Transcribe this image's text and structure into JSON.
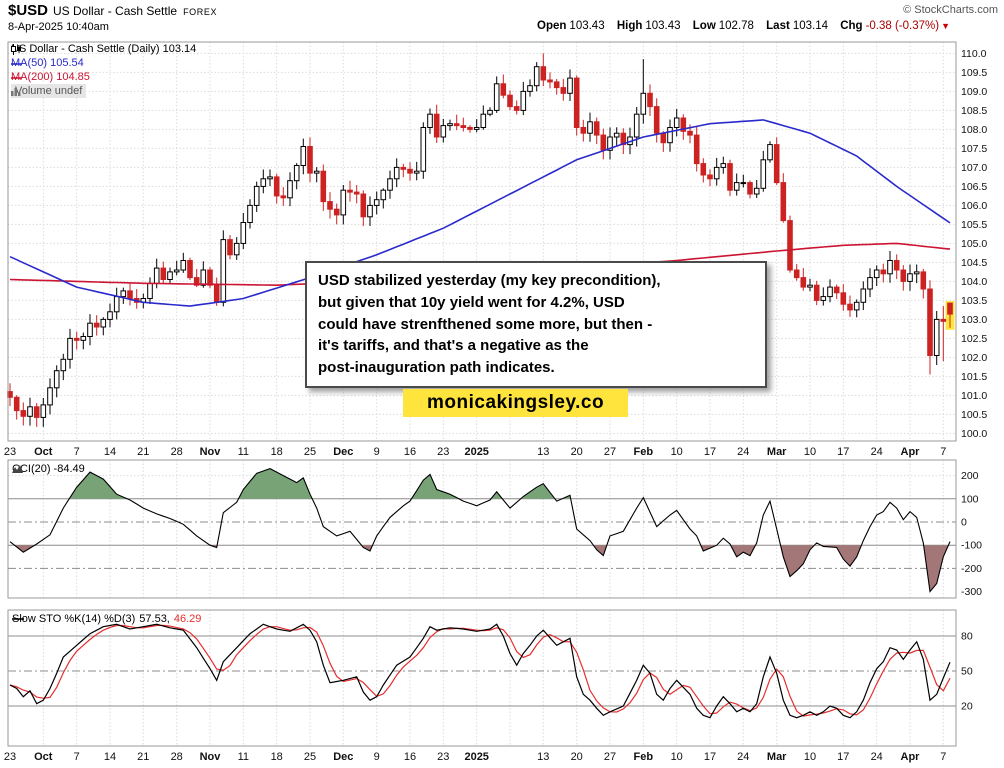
{
  "header": {
    "symbol": "$USD",
    "name": "US Dollar - Cash Settle",
    "exchange": "FOREX",
    "datetime": "8-Apr-2025 10:40am",
    "copyright": "© StockCharts.com",
    "quote": {
      "open_label": "Open",
      "open": "103.43",
      "high_label": "High",
      "high": "103.43",
      "low_label": "Low",
      "low": "102.78",
      "last_label": "Last",
      "last": "103.14",
      "chg_label": "Chg",
      "chg": "-0.38 (-0.37%)",
      "chg_arrow": "▼"
    }
  },
  "main_legend": {
    "title": "US Dollar - Cash Settle (Daily) 103.14",
    "ma50": "MA(50) 105.54",
    "ma200": "MA(200) 104.85",
    "volume": "Volume undef"
  },
  "cci_legend": "CCI(20) -84.49",
  "sto_legend": {
    "label": "Slow STO %K(14) %D(3)",
    "k": "57.53,",
    "d": "46.29"
  },
  "annotation": {
    "lines": [
      "USD stabilized yesterday (my key precondition),",
      "but given that 10y yield went for 4.2%, USD",
      "could have strenfthened some more, but then -",
      "it's tariffs, and that's a negative as the",
      "post-inauguration path indicates."
    ],
    "ticker": "monicakingsley.co"
  },
  "colors": {
    "up": "#000000",
    "down": "#cc2222",
    "ma50": "#2a2acc",
    "ma200": "#cc1433",
    "cci_green": "#77a377",
    "cci_red": "#a37777",
    "sto_k": "#000000",
    "sto_d": "#e62e2e",
    "highlight": "#ffe43e",
    "chg": "#aa0000"
  },
  "chart_data": [
    {
      "type": "candlestick",
      "title": "US Dollar - Cash Settle (Daily)",
      "last": 103.14,
      "ylim": [
        100.0,
        110.0
      ],
      "tick_step": 0.5,
      "first_open": 101.1,
      "closes": [
        100.95,
        100.6,
        100.45,
        100.7,
        100.42,
        100.75,
        101.2,
        101.65,
        101.95,
        102.5,
        102.45,
        102.55,
        102.9,
        102.8,
        103.0,
        103.2,
        103.6,
        103.75,
        103.55,
        103.45,
        103.55,
        103.95,
        104.35,
        104.05,
        104.25,
        104.3,
        104.55,
        104.1,
        103.9,
        104.3,
        103.9,
        103.45,
        105.1,
        104.7,
        105.0,
        105.55,
        106.0,
        106.5,
        106.7,
        106.75,
        106.25,
        106.2,
        106.65,
        107.05,
        107.55,
        106.85,
        106.9,
        106.1,
        105.9,
        105.75,
        106.4,
        106.35,
        106.3,
        105.7,
        106.0,
        106.15,
        106.4,
        106.7,
        107.0,
        106.95,
        106.85,
        106.9,
        108.05,
        108.4,
        107.8,
        108.1,
        108.15,
        108.1,
        108.05,
        108.0,
        108.05,
        108.4,
        108.5,
        109.2,
        108.9,
        108.6,
        108.5,
        109.0,
        109.15,
        109.65,
        109.3,
        109.25,
        109.1,
        108.95,
        109.35,
        108.05,
        107.9,
        108.2,
        107.85,
        107.45,
        107.8,
        107.9,
        107.6,
        107.8,
        108.4,
        108.95,
        108.6,
        107.9,
        107.65,
        108.05,
        108.3,
        107.95,
        107.85,
        107.1,
        106.8,
        106.7,
        107.0,
        107.1,
        106.4,
        106.6,
        106.6,
        106.3,
        106.45,
        107.2,
        107.6,
        106.6,
        105.6,
        104.3,
        104.1,
        103.85,
        103.9,
        103.5,
        103.6,
        103.85,
        103.7,
        103.4,
        103.25,
        103.45,
        103.8,
        104.1,
        104.3,
        104.2,
        104.55,
        104.3,
        104.0,
        104.2,
        104.25,
        103.8,
        102.05,
        103.0,
        102.95,
        103.14
      ],
      "wick_overrides": {
        "62": {
          "low": 106.7
        },
        "80": {
          "high": 110.0
        },
        "95": {
          "high": 109.85
        },
        "138": {
          "low": 101.55
        },
        "140": {
          "low": 101.9,
          "high": 103.35
        },
        "141": {
          "open": 103.43,
          "high": 103.43,
          "low": 102.78
        }
      },
      "ma50_points": [
        [
          0,
          104.65
        ],
        [
          10,
          103.85
        ],
        [
          20,
          103.45
        ],
        [
          27,
          103.35
        ],
        [
          35,
          103.55
        ],
        [
          45,
          104.1
        ],
        [
          55,
          104.7
        ],
        [
          65,
          105.4
        ],
        [
          75,
          106.3
        ],
        [
          85,
          107.2
        ],
        [
          95,
          107.8
        ],
        [
          105,
          108.15
        ],
        [
          113,
          108.25
        ],
        [
          120,
          107.9
        ],
        [
          127,
          107.3
        ],
        [
          133,
          106.5
        ],
        [
          138,
          105.9
        ],
        [
          141,
          105.54
        ]
      ],
      "ma200_points": [
        [
          0,
          104.05
        ],
        [
          20,
          103.95
        ],
        [
          40,
          103.9
        ],
        [
          60,
          104.05
        ],
        [
          80,
          104.3
        ],
        [
          100,
          104.55
        ],
        [
          115,
          104.8
        ],
        [
          125,
          104.95
        ],
        [
          133,
          105.0
        ],
        [
          141,
          104.85
        ]
      ],
      "x_ticks": [
        {
          "i": 0,
          "t": "23"
        },
        {
          "i": 5,
          "t": "Oct",
          "b": true
        },
        {
          "i": 10,
          "t": "7"
        },
        {
          "i": 15,
          "t": "14"
        },
        {
          "i": 20,
          "t": "21"
        },
        {
          "i": 25,
          "t": "28"
        },
        {
          "i": 30,
          "t": "Nov",
          "b": true
        },
        {
          "i": 35,
          "t": "11"
        },
        {
          "i": 40,
          "t": "18"
        },
        {
          "i": 45,
          "t": "25"
        },
        {
          "i": 50,
          "t": "Dec",
          "b": true
        },
        {
          "i": 55,
          "t": "9"
        },
        {
          "i": 60,
          "t": "16"
        },
        {
          "i": 65,
          "t": "23"
        },
        {
          "i": 70,
          "t": "2025",
          "b": true
        },
        {
          "i": 80,
          "t": "13"
        },
        {
          "i": 85,
          "t": "20"
        },
        {
          "i": 90,
          "t": "27"
        },
        {
          "i": 95,
          "t": "Feb",
          "b": true
        },
        {
          "i": 100,
          "t": "10"
        },
        {
          "i": 105,
          "t": "17"
        },
        {
          "i": 110,
          "t": "24"
        },
        {
          "i": 115,
          "t": "Mar",
          "b": true
        },
        {
          "i": 120,
          "t": "10"
        },
        {
          "i": 125,
          "t": "17"
        },
        {
          "i": 130,
          "t": "24"
        },
        {
          "i": 135,
          "t": "Apr",
          "b": true
        },
        {
          "i": 140,
          "t": "7"
        }
      ]
    },
    {
      "type": "line",
      "name": "CCI(20)",
      "last": -84.49,
      "ticks": [
        200,
        100,
        0,
        -100,
        -200,
        -300
      ],
      "fill_above": 100,
      "fill_below": -100,
      "points": [
        [
          0,
          -85
        ],
        [
          2,
          -130
        ],
        [
          4,
          -95
        ],
        [
          6,
          -55
        ],
        [
          8,
          60
        ],
        [
          10,
          150
        ],
        [
          12,
          215
        ],
        [
          14,
          185
        ],
        [
          16,
          120
        ],
        [
          18,
          95
        ],
        [
          20,
          60
        ],
        [
          22,
          35
        ],
        [
          24,
          15
        ],
        [
          26,
          -10
        ],
        [
          28,
          -60
        ],
        [
          30,
          -100
        ],
        [
          31,
          -110
        ],
        [
          32,
          40
        ],
        [
          34,
          85
        ],
        [
          35,
          140
        ],
        [
          37,
          210
        ],
        [
          39,
          230
        ],
        [
          41,
          200
        ],
        [
          43,
          170
        ],
        [
          44,
          190
        ],
        [
          45,
          120
        ],
        [
          46,
          60
        ],
        [
          47,
          -20
        ],
        [
          49,
          -60
        ],
        [
          51,
          -40
        ],
        [
          53,
          -110
        ],
        [
          54,
          -125
        ],
        [
          55,
          -60
        ],
        [
          57,
          20
        ],
        [
          59,
          70
        ],
        [
          60,
          90
        ],
        [
          62,
          180
        ],
        [
          63,
          205
        ],
        [
          64,
          140
        ],
        [
          66,
          120
        ],
        [
          68,
          90
        ],
        [
          70,
          70
        ],
        [
          72,
          95
        ],
        [
          73,
          130
        ],
        [
          75,
          60
        ],
        [
          77,
          110
        ],
        [
          79,
          150
        ],
        [
          80,
          165
        ],
        [
          82,
          90
        ],
        [
          84,
          115
        ],
        [
          85,
          -30
        ],
        [
          87,
          -80
        ],
        [
          88,
          -120
        ],
        [
          89,
          -145
        ],
        [
          90,
          -60
        ],
        [
          92,
          -40
        ],
        [
          94,
          60
        ],
        [
          95,
          105
        ],
        [
          97,
          -20
        ],
        [
          99,
          30
        ],
        [
          100,
          50
        ],
        [
          102,
          -30
        ],
        [
          103,
          -60
        ],
        [
          104,
          -125
        ],
        [
          106,
          -100
        ],
        [
          107,
          -70
        ],
        [
          108,
          -95
        ],
        [
          109,
          -150
        ],
        [
          110,
          -130
        ],
        [
          111,
          -145
        ],
        [
          112,
          -90
        ],
        [
          113,
          30
        ],
        [
          114,
          90
        ],
        [
          115,
          -30
        ],
        [
          116,
          -150
        ],
        [
          117,
          -235
        ],
        [
          118,
          -210
        ],
        [
          119,
          -180
        ],
        [
          120,
          -120
        ],
        [
          121,
          -90
        ],
        [
          122,
          -105
        ],
        [
          124,
          -110
        ],
        [
          125,
          -160
        ],
        [
          126,
          -190
        ],
        [
          127,
          -150
        ],
        [
          128,
          -80
        ],
        [
          129,
          -20
        ],
        [
          130,
          30
        ],
        [
          131,
          45
        ],
        [
          132,
          85
        ],
        [
          133,
          60
        ],
        [
          134,
          10
        ],
        [
          135,
          45
        ],
        [
          136,
          20
        ],
        [
          137,
          -90
        ],
        [
          138,
          -300
        ],
        [
          139,
          -265
        ],
        [
          140,
          -150
        ],
        [
          141,
          -84.49
        ]
      ]
    },
    {
      "type": "line",
      "name": "Slow STO %K(14) %D(3)",
      "k_last": 57.53,
      "d_last": 46.29,
      "ticks": [
        80,
        50,
        20
      ],
      "k_points": [
        [
          0,
          38
        ],
        [
          1,
          35
        ],
        [
          2,
          28
        ],
        [
          3,
          33
        ],
        [
          4,
          22
        ],
        [
          5,
          25
        ],
        [
          6,
          35
        ],
        [
          7,
          48
        ],
        [
          8,
          62
        ],
        [
          10,
          72
        ],
        [
          12,
          82
        ],
        [
          14,
          88
        ],
        [
          16,
          90
        ],
        [
          18,
          86
        ],
        [
          20,
          88
        ],
        [
          22,
          90
        ],
        [
          24,
          87
        ],
        [
          26,
          85
        ],
        [
          28,
          70
        ],
        [
          30,
          52
        ],
        [
          31,
          42
        ],
        [
          32,
          58
        ],
        [
          34,
          70
        ],
        [
          36,
          82
        ],
        [
          38,
          90
        ],
        [
          40,
          86
        ],
        [
          42,
          84
        ],
        [
          44,
          90
        ],
        [
          45,
          85
        ],
        [
          46,
          75
        ],
        [
          47,
          55
        ],
        [
          48,
          40
        ],
        [
          50,
          42
        ],
        [
          52,
          45
        ],
        [
          53,
          32
        ],
        [
          54,
          25
        ],
        [
          55,
          28
        ],
        [
          56,
          38
        ],
        [
          58,
          55
        ],
        [
          60,
          62
        ],
        [
          62,
          78
        ],
        [
          63,
          88
        ],
        [
          64,
          85
        ],
        [
          66,
          87
        ],
        [
          68,
          86
        ],
        [
          70,
          84
        ],
        [
          72,
          86
        ],
        [
          73,
          90
        ],
        [
          74,
          80
        ],
        [
          75,
          65
        ],
        [
          76,
          55
        ],
        [
          77,
          65
        ],
        [
          78,
          72
        ],
        [
          79,
          80
        ],
        [
          80,
          85
        ],
        [
          82,
          72
        ],
        [
          84,
          78
        ],
        [
          85,
          45
        ],
        [
          86,
          30
        ],
        [
          87,
          25
        ],
        [
          88,
          18
        ],
        [
          89,
          12
        ],
        [
          90,
          15
        ],
        [
          92,
          20
        ],
        [
          94,
          42
        ],
        [
          95,
          55
        ],
        [
          96,
          48
        ],
        [
          97,
          30
        ],
        [
          98,
          25
        ],
        [
          99,
          35
        ],
        [
          100,
          42
        ],
        [
          102,
          30
        ],
        [
          103,
          18
        ],
        [
          104,
          12
        ],
        [
          105,
          10
        ],
        [
          106,
          20
        ],
        [
          107,
          28
        ],
        [
          108,
          22
        ],
        [
          109,
          15
        ],
        [
          110,
          18
        ],
        [
          111,
          15
        ],
        [
          112,
          22
        ],
        [
          113,
          45
        ],
        [
          114,
          62
        ],
        [
          115,
          48
        ],
        [
          116,
          25
        ],
        [
          117,
          12
        ],
        [
          118,
          10
        ],
        [
          119,
          12
        ],
        [
          120,
          15
        ],
        [
          121,
          12
        ],
        [
          122,
          15
        ],
        [
          123,
          20
        ],
        [
          124,
          18
        ],
        [
          125,
          12
        ],
        [
          126,
          10
        ],
        [
          127,
          15
        ],
        [
          128,
          25
        ],
        [
          129,
          40
        ],
        [
          130,
          52
        ],
        [
          131,
          58
        ],
        [
          132,
          70
        ],
        [
          133,
          68
        ],
        [
          134,
          60
        ],
        [
          135,
          68
        ],
        [
          136,
          75
        ],
        [
          137,
          60
        ],
        [
          138,
          25
        ],
        [
          139,
          30
        ],
        [
          140,
          44
        ],
        [
          141,
          57.53
        ]
      ]
    }
  ]
}
